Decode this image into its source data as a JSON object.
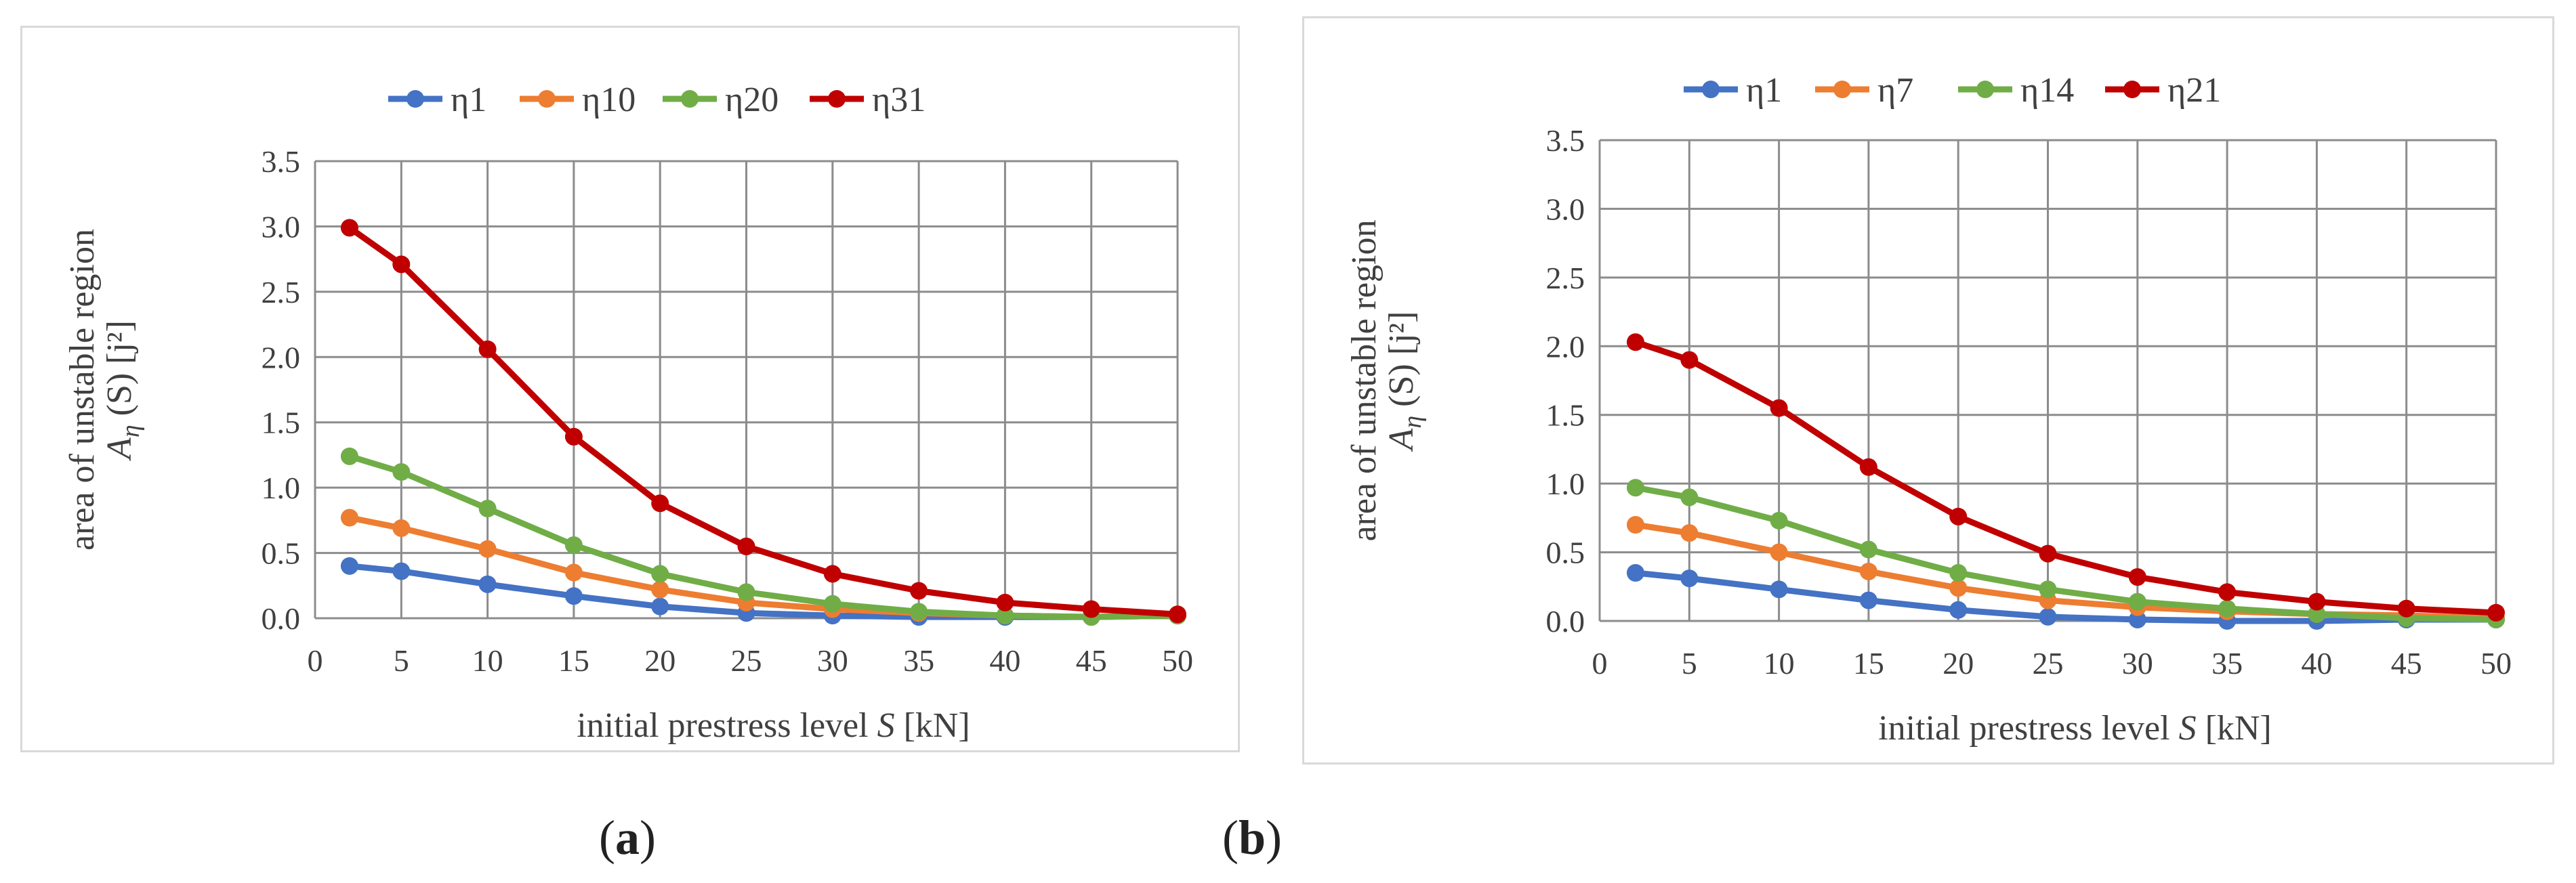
{
  "panels": {
    "a": {
      "caption_open": "(",
      "caption_letter": "a",
      "caption_close": ")"
    },
    "b": {
      "caption_open": "(",
      "caption_letter": "b",
      "caption_close": ")"
    }
  },
  "chart_data": [
    {
      "type": "line",
      "id": "a",
      "xlabel_prefix": "initial prestress level ",
      "xlabel_var": "S",
      "xlabel_unit": " [kN]",
      "ylabel_line1": "area of unstable region",
      "ylabel_A": "A",
      "ylabel_sub": "η",
      "ylabel_arg": " (S) [j²]",
      "xlim": [
        0,
        50
      ],
      "ylim": [
        0,
        3.5
      ],
      "xticks": [
        "0",
        "5",
        "10",
        "15",
        "20",
        "25",
        "30",
        "35",
        "40",
        "45",
        "50"
      ],
      "yticks": [
        "0.0",
        "0.5",
        "1.0",
        "1.5",
        "2.0",
        "2.5",
        "3.0",
        "3.5"
      ],
      "grid": true,
      "legend": "top",
      "x": [
        2,
        5,
        10,
        15,
        20,
        25,
        30,
        35,
        40,
        45,
        50
      ],
      "series": [
        {
          "name": "η1",
          "color": "#4472C4",
          "values": [
            0.4,
            0.36,
            0.26,
            0.17,
            0.09,
            0.04,
            0.02,
            0.01,
            0.01,
            0.01,
            0.02
          ]
        },
        {
          "name": "η10",
          "color": "#ED7D31",
          "values": [
            0.77,
            0.69,
            0.53,
            0.35,
            0.22,
            0.12,
            0.07,
            0.04,
            0.02,
            0.01,
            0.02
          ]
        },
        {
          "name": "η20",
          "color": "#70AD47",
          "values": [
            1.24,
            1.12,
            0.84,
            0.56,
            0.34,
            0.2,
            0.11,
            0.05,
            0.02,
            0.01,
            0.02
          ]
        },
        {
          "name": "η31",
          "color": "#C00000",
          "values": [
            2.99,
            2.71,
            2.06,
            1.39,
            0.88,
            0.55,
            0.34,
            0.21,
            0.12,
            0.07,
            0.03
          ]
        }
      ]
    },
    {
      "type": "line",
      "id": "b",
      "xlabel_prefix": "initial prestress level ",
      "xlabel_var": "S",
      "xlabel_unit": " [kN]",
      "ylabel_line1": "area of unstable region",
      "ylabel_A": "A",
      "ylabel_sub": "η",
      "ylabel_arg": " (S) [j²]",
      "xlim": [
        0,
        50
      ],
      "ylim": [
        0,
        3.5
      ],
      "xticks": [
        "0",
        "5",
        "10",
        "15",
        "20",
        "25",
        "30",
        "35",
        "40",
        "45",
        "50"
      ],
      "yticks": [
        "0.0",
        "0.5",
        "1.0",
        "1.5",
        "2.0",
        "2.5",
        "3.0",
        "3.5"
      ],
      "grid": true,
      "legend": "top",
      "x": [
        2,
        5,
        10,
        15,
        20,
        25,
        30,
        35,
        40,
        45,
        50
      ],
      "series": [
        {
          "name": "η1",
          "color": "#4472C4",
          "values": [
            0.35,
            0.31,
            0.23,
            0.15,
            0.08,
            0.03,
            0.01,
            0.0,
            0.0,
            0.01,
            0.01
          ]
        },
        {
          "name": "η7",
          "color": "#ED7D31",
          "values": [
            0.7,
            0.64,
            0.5,
            0.36,
            0.24,
            0.15,
            0.1,
            0.07,
            0.05,
            0.04,
            0.02
          ]
        },
        {
          "name": "η14",
          "color": "#70AD47",
          "values": [
            0.97,
            0.9,
            0.73,
            0.52,
            0.35,
            0.23,
            0.14,
            0.09,
            0.05,
            0.02,
            0.01
          ]
        },
        {
          "name": "η21",
          "color": "#C00000",
          "values": [
            2.03,
            1.9,
            1.55,
            1.12,
            0.76,
            0.49,
            0.32,
            0.21,
            0.14,
            0.09,
            0.06
          ]
        }
      ]
    }
  ]
}
